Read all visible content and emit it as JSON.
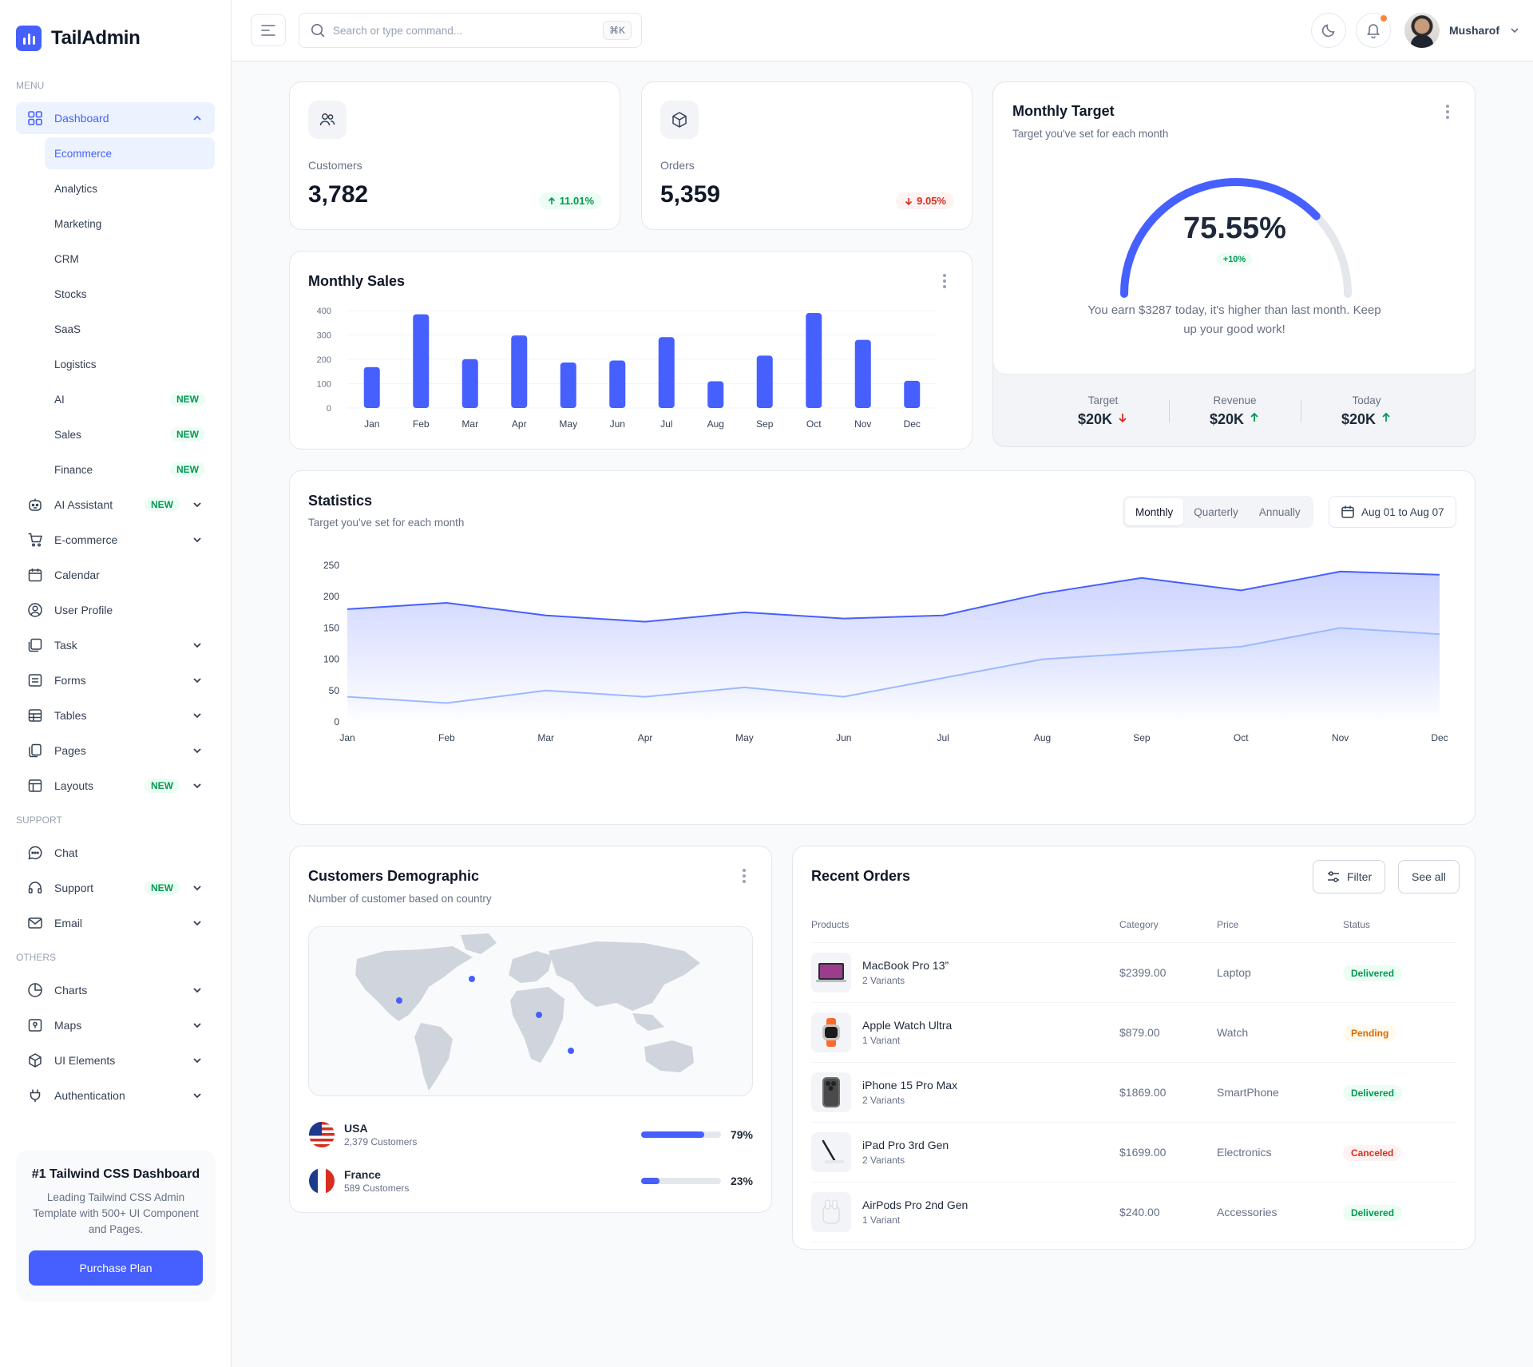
{
  "app": {
    "name": "TailAdmin"
  },
  "sidebar": {
    "menu_label": "MENU",
    "support_label": "SUPPORT",
    "others_label": "OTHERS",
    "dashboard": {
      "label": "Dashboard"
    },
    "dashboard_sub": [
      {
        "label": "Ecommerce",
        "badge": ""
      },
      {
        "label": "Analytics",
        "badge": ""
      },
      {
        "label": "Marketing",
        "badge": ""
      },
      {
        "label": "CRM",
        "badge": ""
      },
      {
        "label": "Stocks",
        "badge": ""
      },
      {
        "label": "SaaS",
        "badge": ""
      },
      {
        "label": "Logistics",
        "badge": ""
      },
      {
        "label": "AI",
        "badge": "NEW"
      },
      {
        "label": "Sales",
        "badge": "NEW"
      },
      {
        "label": "Finance",
        "badge": "NEW"
      }
    ],
    "menu": [
      {
        "label": "AI Assistant",
        "badge": "NEW",
        "icon": "robot-icon"
      },
      {
        "label": "E-commerce",
        "badge": "",
        "icon": "cart-icon"
      },
      {
        "label": "Calendar",
        "badge": "",
        "icon": "calendar-icon"
      },
      {
        "label": "User Profile",
        "badge": "",
        "icon": "user-circle-icon"
      },
      {
        "label": "Task",
        "badge": "",
        "icon": "task-icon"
      },
      {
        "label": "Forms",
        "badge": "",
        "icon": "forms-icon"
      },
      {
        "label": "Tables",
        "badge": "",
        "icon": "table-icon"
      },
      {
        "label": "Pages",
        "badge": "",
        "icon": "pages-icon"
      },
      {
        "label": "Layouts",
        "badge": "NEW",
        "icon": "layout-icon"
      }
    ],
    "support": [
      {
        "label": "Chat",
        "badge": "",
        "icon": "chat-icon"
      },
      {
        "label": "Support",
        "badge": "NEW",
        "icon": "headset-icon"
      },
      {
        "label": "Email",
        "badge": "",
        "icon": "mail-icon"
      }
    ],
    "others": [
      {
        "label": "Charts",
        "icon": "pie-chart-icon"
      },
      {
        "label": "Maps",
        "icon": "map-icon"
      },
      {
        "label": "UI Elements",
        "icon": "cube-icon"
      },
      {
        "label": "Authentication",
        "icon": "plug-icon"
      }
    ],
    "promo": {
      "title": "#1 Tailwind CSS Dashboard",
      "text": "Leading Tailwind CSS Admin Template with 500+ UI Component and Pages.",
      "button": "Purchase Plan"
    }
  },
  "header": {
    "search_placeholder": "Search or type command...",
    "shortcut": "⌘K",
    "user_name": "Musharof"
  },
  "metrics": {
    "customers": {
      "label": "Customers",
      "value": "3,782",
      "change": "11.01%"
    },
    "orders": {
      "label": "Orders",
      "value": "5,359",
      "change": "9.05%"
    }
  },
  "monthly_target": {
    "title": "Monthly Target",
    "subtitle": "Target you've set for each month",
    "percent": "75.55%",
    "percent_value": 75.55,
    "delta": "+10%",
    "message": "You earn $3287 today, it's higher than last month. Keep up your good work!",
    "stats": [
      {
        "label": "Target",
        "value": "$20K",
        "trend": "down"
      },
      {
        "label": "Revenue",
        "value": "$20K",
        "trend": "up"
      },
      {
        "label": "Today",
        "value": "$20K",
        "trend": "up"
      }
    ],
    "colors": {
      "accent": "#465fff",
      "track": "#e4e7ec",
      "up": "#039855",
      "down": "#d92d20"
    }
  },
  "monthly_sales": {
    "title": "Monthly Sales",
    "chart_data": {
      "type": "bar",
      "categories": [
        "Jan",
        "Feb",
        "Mar",
        "Apr",
        "May",
        "Jun",
        "Jul",
        "Aug",
        "Sep",
        "Oct",
        "Nov",
        "Dec"
      ],
      "values": [
        168,
        385,
        201,
        298,
        187,
        195,
        291,
        110,
        215,
        390,
        280,
        112
      ],
      "yticks": [
        0,
        100,
        200,
        300,
        400
      ],
      "ylim": [
        0,
        400
      ],
      "color": "#465fff"
    }
  },
  "statistics": {
    "title": "Statistics",
    "subtitle": "Target you've set for each month",
    "tabs": [
      "Monthly",
      "Quarterly",
      "Annually"
    ],
    "date_range": "Aug 01 to Aug 07",
    "chart_data": {
      "type": "area",
      "categories": [
        "Jan",
        "Feb",
        "Mar",
        "Apr",
        "May",
        "Jun",
        "Jul",
        "Aug",
        "Sep",
        "Oct",
        "Nov",
        "Dec"
      ],
      "series": [
        {
          "values": [
            180,
            190,
            170,
            160,
            175,
            165,
            170,
            205,
            230,
            210,
            240,
            235
          ],
          "color": "#465fff"
        },
        {
          "values": [
            40,
            30,
            50,
            40,
            55,
            40,
            70,
            100,
            110,
            120,
            150,
            140
          ],
          "color": "#9cb9ff"
        }
      ],
      "yticks": [
        0,
        50,
        100,
        150,
        200,
        250
      ],
      "ylim": [
        0,
        250
      ]
    }
  },
  "demographic": {
    "title": "Customers Demographic",
    "subtitle": "Number of customer based on country",
    "countries": [
      {
        "name": "USA",
        "customers": "2,379 Customers",
        "percent": "79%",
        "fraction": 0.79
      },
      {
        "name": "France",
        "customers": "589 Customers",
        "percent": "23%",
        "fraction": 0.23
      }
    ]
  },
  "recent_orders": {
    "title": "Recent Orders",
    "filter_label": "Filter",
    "see_all_label": "See all",
    "columns": [
      "Products",
      "Category",
      "Price",
      "Status"
    ],
    "rows": [
      {
        "name": "MacBook Pro 13”",
        "variants": "2 Variants",
        "price": "$2399.00",
        "category": "Laptop",
        "status": "Delivered",
        "kind": "del",
        "icon": "laptop-icon"
      },
      {
        "name": "Apple Watch Ultra",
        "variants": "1 Variant",
        "price": "$879.00",
        "category": "Watch",
        "status": "Pending",
        "kind": "pen",
        "icon": "watch-icon"
      },
      {
        "name": "iPhone 15 Pro Max",
        "variants": "2 Variants",
        "price": "$1869.00",
        "category": "SmartPhone",
        "status": "Delivered",
        "kind": "del",
        "icon": "phone-icon"
      },
      {
        "name": "iPad Pro 3rd Gen",
        "variants": "2 Variants",
        "price": "$1699.00",
        "category": "Electronics",
        "status": "Canceled",
        "kind": "can",
        "icon": "tablet-icon"
      },
      {
        "name": "AirPods Pro 2nd Gen",
        "variants": "1 Variant",
        "price": "$240.00",
        "category": "Accessories",
        "status": "Delivered",
        "kind": "del",
        "icon": "airpods-icon"
      }
    ]
  }
}
